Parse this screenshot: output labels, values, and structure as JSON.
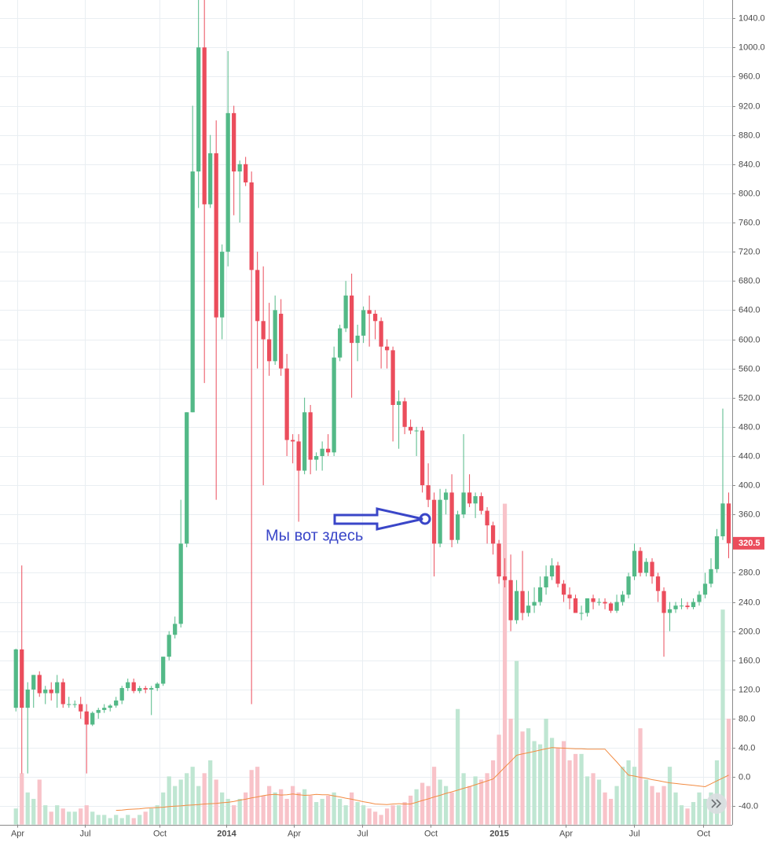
{
  "chart_data": {
    "type": "candlestick",
    "annotation": "Мы вот здесь",
    "up_color": "#53b987",
    "down_color": "#eb4d5c",
    "volume_up_color": "#bfe6d2",
    "volume_down_color": "#f8c3c9",
    "volume_ma_color": "#f28b42",
    "grid": true,
    "xlim": [
      -2.7,
      121.6
    ],
    "xticks": [
      {
        "value": 0.3,
        "label": "Apr"
      },
      {
        "value": 11.7,
        "label": "Jul"
      },
      {
        "value": 24.4,
        "label": "Oct"
      },
      {
        "value": 35.7,
        "label": "2014"
      },
      {
        "value": 47.2,
        "label": "Apr"
      },
      {
        "value": 58.8,
        "label": "Jul"
      },
      {
        "value": 70.4,
        "label": "Oct"
      },
      {
        "value": 82.0,
        "label": "2015"
      },
      {
        "value": 93.3,
        "label": "Apr"
      },
      {
        "value": 104.9,
        "label": "Jul"
      },
      {
        "value": 116.7,
        "label": "Oct"
      }
    ],
    "ylim": [
      -65,
      1065
    ],
    "yticks": [
      {
        "value": -40,
        "label": "-40.0"
      },
      {
        "value": 0,
        "label": "0.0"
      },
      {
        "value": 40,
        "label": "40.0"
      },
      {
        "value": 80,
        "label": "80.0"
      },
      {
        "value": 120,
        "label": "120.0"
      },
      {
        "value": 160,
        "label": "160.0"
      },
      {
        "value": 200,
        "label": "200.0"
      },
      {
        "value": 240,
        "label": "240.0"
      },
      {
        "value": 280,
        "label": "280.0"
      },
      {
        "value": 320,
        "label": "320.0"
      },
      {
        "value": 360,
        "label": "360.0"
      },
      {
        "value": 400,
        "label": "400.0"
      },
      {
        "value": 440,
        "label": "440.0"
      },
      {
        "value": 480,
        "label": "480.0"
      },
      {
        "value": 520,
        "label": "520.0"
      },
      {
        "value": 560,
        "label": "560.0"
      },
      {
        "value": 600,
        "label": "600.0"
      },
      {
        "value": 640,
        "label": "640.0"
      },
      {
        "value": 680,
        "label": "680.0"
      },
      {
        "value": 720,
        "label": "720.0"
      },
      {
        "value": 760,
        "label": "760.0"
      },
      {
        "value": 800,
        "label": "800.0"
      },
      {
        "value": 840,
        "label": "840.0"
      },
      {
        "value": 880,
        "label": "880.0"
      },
      {
        "value": 920,
        "label": "920.0"
      },
      {
        "value": 960,
        "label": "960.0"
      },
      {
        "value": 1000,
        "label": "1000.0"
      },
      {
        "value": 1040,
        "label": "1040.0"
      }
    ],
    "open": [
      95,
      175,
      95,
      120,
      140,
      115,
      120,
      115,
      130,
      100,
      100,
      100,
      90,
      72,
      88,
      92,
      95,
      98,
      105,
      122,
      130,
      118,
      122,
      120,
      122,
      128,
      165,
      195,
      210,
      320,
      500,
      830,
      1000,
      785,
      855,
      630,
      720,
      910,
      830,
      840,
      815,
      695,
      625,
      600,
      570,
      635,
      560,
      462,
      460,
      420,
      500,
      435,
      440,
      450,
      445,
      575,
      615,
      660,
      595,
      605,
      640,
      635,
      625,
      590,
      585,
      510,
      515,
      480,
      475,
      475,
      400,
      380,
      320,
      380,
      390,
      325,
      360,
      390,
      375,
      385,
      365,
      345,
      320,
      275,
      270,
      215,
      255,
      225,
      235,
      240,
      260,
      275,
      290,
      265,
      250,
      245,
      225,
      225,
      245,
      240,
      240,
      238,
      228,
      240,
      250,
      275,
      310,
      280,
      295,
      275,
      255,
      225,
      230,
      235,
      235,
      233,
      240,
      250,
      265,
      285,
      330,
      375
    ],
    "high": [
      176,
      290,
      130,
      140,
      145,
      125,
      130,
      140,
      135,
      110,
      105,
      110,
      100,
      90,
      95,
      100,
      100,
      110,
      125,
      135,
      135,
      125,
      125,
      125,
      130,
      165,
      200,
      220,
      380,
      500,
      920,
      1075,
      1065,
      880,
      900,
      730,
      995,
      920,
      845,
      850,
      830,
      720,
      700,
      650,
      660,
      655,
      580,
      470,
      470,
      520,
      510,
      445,
      460,
      470,
      590,
      620,
      680,
      690,
      620,
      645,
      660,
      640,
      630,
      600,
      590,
      530,
      520,
      490,
      480,
      480,
      430,
      390,
      395,
      395,
      415,
      365,
      470,
      415,
      390,
      390,
      370,
      350,
      325,
      300,
      305,
      270,
      310,
      255,
      260,
      275,
      290,
      300,
      295,
      270,
      260,
      250,
      235,
      245,
      250,
      245,
      245,
      240,
      250,
      255,
      280,
      320,
      315,
      300,
      300,
      280,
      260,
      240,
      240,
      245,
      240,
      245,
      255,
      280,
      300,
      340,
      505,
      390
    ],
    "low": [
      90,
      5,
      5,
      95,
      110,
      100,
      105,
      95,
      95,
      95,
      95,
      80,
      5,
      70,
      80,
      88,
      90,
      95,
      100,
      118,
      115,
      115,
      115,
      85,
      118,
      125,
      160,
      190,
      205,
      315,
      500,
      780,
      540,
      780,
      380,
      600,
      700,
      770,
      760,
      810,
      100,
      560,
      400,
      550,
      565,
      550,
      440,
      430,
      350,
      415,
      415,
      420,
      420,
      440,
      440,
      570,
      610,
      520,
      570,
      595,
      590,
      600,
      560,
      560,
      460,
      450,
      470,
      470,
      440,
      390,
      370,
      275,
      315,
      360,
      315,
      320,
      355,
      370,
      355,
      360,
      320,
      305,
      265,
      260,
      200,
      210,
      215,
      220,
      225,
      235,
      250,
      270,
      260,
      240,
      230,
      225,
      215,
      220,
      230,
      235,
      230,
      225,
      225,
      235,
      245,
      270,
      275,
      275,
      265,
      240,
      165,
      200,
      225,
      230,
      230,
      230,
      235,
      245,
      260,
      280,
      325,
      300
    ],
    "close": [
      175,
      95,
      120,
      140,
      115,
      120,
      115,
      130,
      100,
      100,
      100,
      90,
      72,
      88,
      92,
      95,
      98,
      105,
      122,
      130,
      118,
      122,
      120,
      122,
      128,
      165,
      195,
      210,
      320,
      500,
      830,
      1000,
      785,
      855,
      630,
      720,
      910,
      830,
      840,
      815,
      695,
      625,
      600,
      570,
      640,
      560,
      462,
      460,
      420,
      500,
      435,
      440,
      450,
      445,
      575,
      615,
      660,
      595,
      605,
      640,
      635,
      625,
      590,
      585,
      510,
      515,
      480,
      475,
      475,
      400,
      380,
      320,
      380,
      390,
      325,
      360,
      390,
      375,
      385,
      365,
      345,
      320,
      275,
      270,
      215,
      255,
      225,
      235,
      240,
      260,
      275,
      290,
      265,
      250,
      245,
      225,
      225,
      245,
      240,
      240,
      238,
      228,
      240,
      250,
      275,
      310,
      280,
      295,
      275,
      255,
      225,
      230,
      235,
      235,
      233,
      240,
      250,
      265,
      285,
      330,
      375,
      320.5
    ],
    "volume": [
      5,
      16,
      10,
      8,
      14,
      6,
      4,
      6,
      5,
      4,
      4,
      5,
      6,
      4,
      3,
      3,
      2,
      3,
      2,
      3,
      2,
      3,
      4,
      5,
      6,
      10,
      15,
      12,
      14,
      16,
      18,
      12,
      16,
      20,
      14,
      10,
      8,
      6,
      8,
      10,
      17,
      18,
      9,
      12,
      10,
      11,
      8,
      12,
      10,
      11,
      9,
      7,
      8,
      9,
      10,
      8,
      6,
      10,
      7,
      6,
      5,
      4,
      3,
      5,
      6,
      6,
      7,
      9,
      11,
      13,
      12,
      18,
      14,
      12,
      10,
      36,
      16,
      12,
      15,
      14,
      16,
      20,
      28,
      100,
      33,
      51,
      29,
      30,
      26,
      25,
      33,
      27,
      24,
      26,
      20,
      22,
      22,
      15,
      16,
      14,
      10,
      8,
      12,
      18,
      20,
      18,
      30,
      14,
      12,
      10,
      12,
      18,
      10,
      6,
      5,
      7,
      10,
      8,
      10,
      20,
      67,
      33
    ],
    "volume_ma": [
      null,
      null,
      null,
      null,
      null,
      null,
      null,
      null,
      null,
      null,
      null,
      null,
      null,
      null,
      null,
      null,
      null,
      4.4,
      4.5,
      4.7,
      4.8,
      4.9,
      5.1,
      5.2,
      5.3,
      5.4,
      5.6,
      5.7,
      5.8,
      6.0,
      6.1,
      6.2,
      6.4,
      6.5,
      6.6,
      6.8,
      6.9,
      7.2,
      7.6,
      7.9,
      8.3,
      8.6,
      9.0,
      9.3,
      9.4,
      9.2,
      9.3,
      9.5,
      9.3,
      9.1,
      9.2,
      9.4,
      9.3,
      9.3,
      8.9,
      8.6,
      8.2,
      7.9,
      7.5,
      7.1,
      6.8,
      6.4,
      6.3,
      6.2,
      6.4,
      6.5,
      6.4,
      6.4,
      6.9,
      7.5,
      8.0,
      8.6,
      9.1,
      9.7,
      10.2,
      10.7,
      11.3,
      11.8,
      12.4,
      13.0,
      13.6,
      14.2,
      16.0,
      17.9,
      19.7,
      21.6,
      22.0,
      22.4,
      22.8,
      23.2,
      23.6,
      24.0,
      23.9,
      23.8,
      23.7,
      23.6,
      23.6,
      23.5,
      23.5,
      23.5,
      23.5,
      21.5,
      19.5,
      17.4,
      15.4,
      15.1,
      14.7,
      14.4,
      14.0,
      13.7,
      13.3,
      13.0,
      12.8,
      12.6,
      12.4,
      12.2,
      12.0,
      11.8,
      12.7,
      13.6,
      14.5,
      15.4
    ]
  }
}
